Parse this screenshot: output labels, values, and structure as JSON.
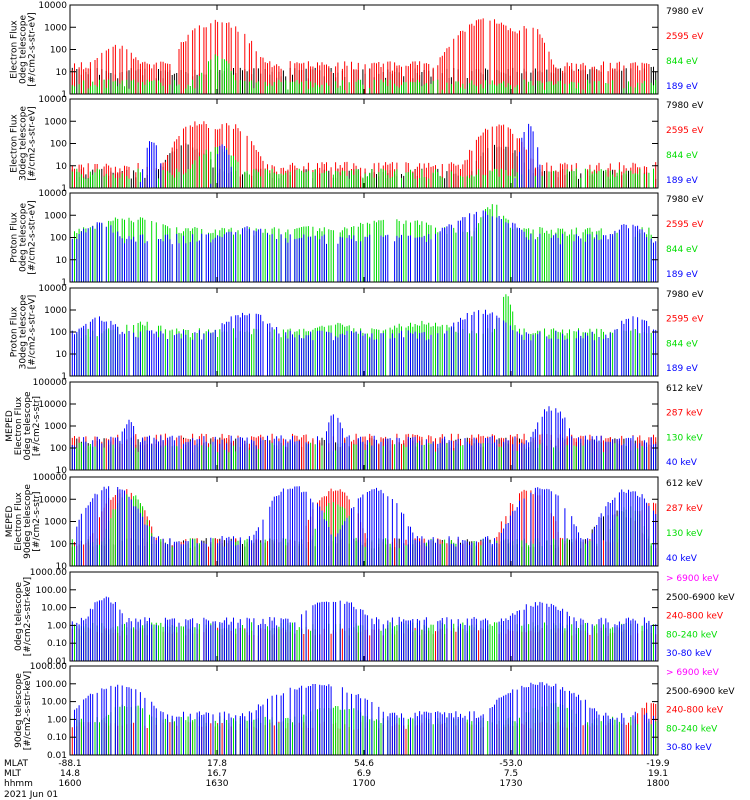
{
  "colors": {
    "black": "#000000",
    "red": "#ff0000",
    "green": "#00dd00",
    "blue": "#0000ff",
    "magenta": "#ff00ff"
  },
  "chart_data": [
    {
      "type": "line",
      "panel": 1,
      "yscale": "log",
      "ylim": [
        1,
        10000
      ],
      "ylabel": [
        "Electron Flux",
        "0deg telescope",
        "[#/cm2-s-str-eV]"
      ],
      "yticks": [
        "1",
        "10",
        "100",
        "1000",
        "10000"
      ],
      "series": [
        {
          "name": "7980 eV",
          "color": "black",
          "baseline": 10,
          "bursts": [
            [
              2,
              60,
              0.9
            ]
          ]
        },
        {
          "name": "2595 eV",
          "color": "red",
          "baseline": 20,
          "bursts": [
            [
              0.08,
              150,
              0.03
            ],
            [
              0.25,
              2000,
              0.04
            ],
            [
              0.71,
              2500,
              0.04
            ],
            [
              0.78,
              1500,
              0.02
            ]
          ]
        },
        {
          "name": "844 eV",
          "color": "green",
          "baseline": 3,
          "bursts": [
            [
              0.25,
              60,
              0.02
            ]
          ]
        },
        {
          "name": "189 eV",
          "color": "blue",
          "baseline": 0,
          "bursts": []
        }
      ]
    },
    {
      "type": "line",
      "panel": 2,
      "yscale": "log",
      "ylim": [
        1,
        10000
      ],
      "ylabel": [
        "Electron Flux",
        "30deg telescope",
        "[#/cm2-s-str-eV]"
      ],
      "yticks": [
        "1",
        "10",
        "100",
        "1000",
        "10000"
      ],
      "series": [
        {
          "name": "7980 eV",
          "color": "black",
          "baseline": 5,
          "bursts": [
            [
              0.2,
              100,
              0.03
            ],
            [
              0.73,
              100,
              0.03
            ]
          ]
        },
        {
          "name": "2595 eV",
          "color": "red",
          "baseline": 10,
          "bursts": [
            [
              0.22,
              1000,
              0.03
            ],
            [
              0.27,
              800,
              0.03
            ],
            [
              0.73,
              800,
              0.03
            ]
          ]
        },
        {
          "name": "844 eV",
          "color": "green",
          "baseline": 5,
          "bursts": [
            [
              0.25,
              80,
              0.03
            ]
          ]
        },
        {
          "name": "189 eV",
          "color": "blue",
          "baseline": 0,
          "bursts": [
            [
              0.14,
              150,
              0.01
            ],
            [
              0.26,
              100,
              0.01
            ],
            [
              0.78,
              700,
              0.01
            ]
          ]
        }
      ]
    },
    {
      "type": "line",
      "panel": 3,
      "yscale": "log",
      "ylim": [
        1,
        10000
      ],
      "ylabel": [
        "Proton Flux",
        "0deg telescope",
        "[#/cm2-s-str-eV]"
      ],
      "yticks": [
        "1",
        "10",
        "100",
        "1000",
        "10000"
      ],
      "series": [
        {
          "name": "7980 eV",
          "color": "black",
          "baseline": 0,
          "bursts": []
        },
        {
          "name": "2595 eV",
          "color": "red",
          "baseline": 0,
          "bursts": []
        },
        {
          "name": "844 eV",
          "color": "green",
          "baseline": 200,
          "bursts": [
            [
              0.1,
              800,
              0.07
            ],
            [
              0.4,
              300,
              0.05
            ],
            [
              0.55,
              700,
              0.08
            ],
            [
              0.72,
              3000,
              0.02
            ]
          ]
        },
        {
          "name": "189 eV",
          "color": "blue",
          "baseline": 100,
          "bursts": [
            [
              0.05,
              500,
              0.03
            ],
            [
              0.3,
              300,
              0.05
            ],
            [
              0.7,
              1500,
              0.05
            ],
            [
              0.95,
              400,
              0.03
            ]
          ]
        }
      ]
    },
    {
      "type": "line",
      "panel": 4,
      "yscale": "log",
      "ylim": [
        1,
        10000
      ],
      "ylabel": [
        "Proton Flux",
        "30deg telescope",
        "[#/cm2-s-str-eV]"
      ],
      "yticks": [
        "1",
        "10",
        "100",
        "1000",
        "10000"
      ],
      "series": [
        {
          "name": "7980 eV",
          "color": "black",
          "baseline": 0,
          "bursts": []
        },
        {
          "name": "2595 eV",
          "color": "red",
          "baseline": 0,
          "bursts": []
        },
        {
          "name": "844 eV",
          "color": "green",
          "baseline": 100,
          "bursts": [
            [
              0.12,
              300,
              0.06
            ],
            [
              0.45,
              250,
              0.05
            ],
            [
              0.6,
              300,
              0.07
            ],
            [
              0.74,
              5000,
              0.01
            ]
          ]
        },
        {
          "name": "189 eV",
          "color": "blue",
          "baseline": 80,
          "bursts": [
            [
              0.05,
              500,
              0.03
            ],
            [
              0.3,
              800,
              0.04
            ],
            [
              0.7,
              1000,
              0.04
            ],
            [
              0.96,
              500,
              0.03
            ]
          ]
        }
      ]
    },
    {
      "type": "line",
      "panel": 5,
      "yscale": "log",
      "ylim": [
        10,
        100000
      ],
      "ylabel": [
        "MEPED",
        "Electron Flux",
        "0deg telescope",
        "[#/cm2-s-str]"
      ],
      "yticks": [
        "10",
        "100",
        "1000",
        "10000",
        "100000"
      ],
      "series": [
        {
          "name": "612 keV",
          "color": "black",
          "baseline": 200,
          "bursts": []
        },
        {
          "name": "287 keV",
          "color": "red",
          "baseline": 300,
          "bursts": []
        },
        {
          "name": "130 keV",
          "color": "green",
          "baseline": 120,
          "bursts": []
        },
        {
          "name": "40 keV",
          "color": "blue",
          "baseline": 250,
          "bursts": [
            [
              0.1,
              2000,
              0.01
            ],
            [
              0.45,
              5000,
              0.01
            ],
            [
              0.82,
              8000,
              0.02
            ]
          ]
        }
      ]
    },
    {
      "type": "line",
      "panel": 6,
      "yscale": "log",
      "ylim": [
        10,
        100000
      ],
      "ylabel": [
        "MEPED",
        "Electron Flux",
        "90deg telescope",
        "[#/cm2-s-str]"
      ],
      "yticks": [
        "10",
        "100",
        "1000",
        "10000",
        "100000"
      ],
      "series": [
        {
          "name": "612 keV",
          "color": "black",
          "baseline": 120,
          "bursts": [
            [
              0.93,
              3000,
              0.03
            ]
          ]
        },
        {
          "name": "287 keV",
          "color": "red",
          "baseline": 120,
          "bursts": [
            [
              0.09,
              30000,
              0.025
            ],
            [
              0.45,
              30000,
              0.025
            ],
            [
              0.78,
              30000,
              0.025
            ],
            [
              0.99,
              8000,
              0.02
            ]
          ]
        },
        {
          "name": "130 keV",
          "color": "green",
          "baseline": 120,
          "bursts": [
            [
              0.1,
              20000,
              0.02
            ],
            [
              0.45,
              8000,
              0.02
            ],
            [
              0.95,
              5000,
              0.02
            ]
          ]
        },
        {
          "name": "40 keV",
          "color": "blue",
          "baseline": 150,
          "bursts": [
            [
              0.07,
              40000,
              0.03
            ],
            [
              0.38,
              40000,
              0.03
            ],
            [
              0.52,
              30000,
              0.03
            ],
            [
              0.8,
              40000,
              0.03
            ],
            [
              0.95,
              30000,
              0.03
            ]
          ]
        }
      ]
    },
    {
      "type": "line",
      "panel": 7,
      "yscale": "log",
      "ylim": [
        0.01,
        1000
      ],
      "ylabel": [
        "0deg telescope",
        "[#/cm2-s-str-keV]"
      ],
      "yticks": [
        "0.01",
        "0.10",
        "1.00",
        "10.00",
        "100.00",
        "1000.00"
      ],
      "series": [
        {
          "name": "> 6900 keV",
          "color": "magenta",
          "baseline": 0,
          "bursts": []
        },
        {
          "name": "2500-6900 keV",
          "color": "black",
          "baseline": 0,
          "bursts": []
        },
        {
          "name": "240-800 keV",
          "color": "red",
          "baseline": 0.5,
          "bursts": []
        },
        {
          "name": "80-240 keV",
          "color": "green",
          "baseline": 1,
          "bursts": []
        },
        {
          "name": "30-80 keV",
          "color": "blue",
          "baseline": 2,
          "bursts": [
            [
              0.06,
              40,
              0.02
            ],
            [
              0.45,
              30,
              0.04
            ],
            [
              0.8,
              20,
              0.04
            ]
          ]
        }
      ]
    },
    {
      "type": "line",
      "panel": 8,
      "yscale": "log",
      "ylim": [
        0.01,
        1000
      ],
      "ylabel": [
        "90deg telescope",
        "[#/cm2-s-str-keV]"
      ],
      "yticks": [
        "0.01",
        "0.10",
        "1.00",
        "10.00",
        "100.00",
        "1000.00"
      ],
      "series": [
        {
          "name": "> 6900 keV",
          "color": "magenta",
          "baseline": 0,
          "bursts": []
        },
        {
          "name": "2500-6900 keV",
          "color": "black",
          "baseline": 0,
          "bursts": []
        },
        {
          "name": "240-800 keV",
          "color": "red",
          "baseline": 0.5,
          "bursts": [
            [
              0.99,
              10,
              0.02
            ]
          ]
        },
        {
          "name": "80-240 keV",
          "color": "green",
          "baseline": 1,
          "bursts": [
            [
              0.1,
              8,
              0.03
            ],
            [
              0.45,
              6,
              0.05
            ],
            [
              0.82,
              8,
              0.04
            ]
          ]
        },
        {
          "name": "30-80 keV",
          "color": "blue",
          "baseline": 2,
          "bursts": [
            [
              0.08,
              100,
              0.04
            ],
            [
              0.42,
              100,
              0.06
            ],
            [
              0.8,
              120,
              0.05
            ]
          ]
        }
      ]
    }
  ],
  "xaxis": {
    "row_labels": [
      "MLAT",
      "MLT",
      "hhmm"
    ],
    "date": "2021 Jun 01",
    "ticks": [
      {
        "mlat": "-88.1",
        "mlt": "14.8",
        "hhmm": "1600"
      },
      {
        "mlat": "17.8",
        "mlt": "16.7",
        "hhmm": "1630"
      },
      {
        "mlat": "54.6",
        "mlt": "6.9",
        "hhmm": "1700"
      },
      {
        "mlat": "-53.0",
        "mlt": "7.5",
        "hhmm": "1730"
      },
      {
        "mlat": "-19.9",
        "mlt": "19.1",
        "hhmm": "1800"
      }
    ]
  }
}
